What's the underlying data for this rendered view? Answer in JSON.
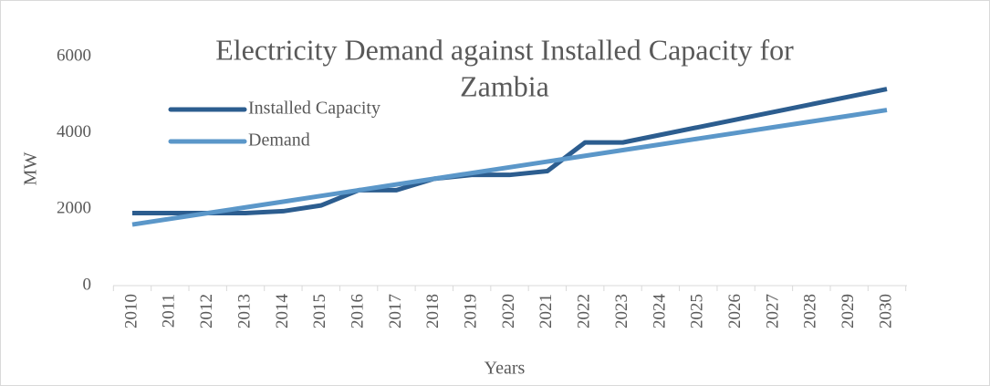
{
  "chart_data": {
    "type": "line",
    "title": [
      "Electricity Demand against Installed Capacity for",
      "Zambia"
    ],
    "x_label": "Years",
    "y_label": "MW",
    "categories": [
      "2010",
      "2011",
      "2012",
      "2013",
      "2014",
      "2015",
      "2016",
      "2017",
      "2018",
      "2019",
      "2020",
      "2021",
      "2022",
      "2023",
      "2024",
      "2025",
      "2026",
      "2027",
      "2028",
      "2029",
      "2030"
    ],
    "series": [
      {
        "name": "Installed Capacity",
        "color": "#2c5d8f",
        "values": [
          1900,
          1900,
          1900,
          1900,
          1950,
          2100,
          2500,
          2500,
          2800,
          2900,
          2900,
          3000,
          3750,
          3750,
          3950,
          4150,
          4350,
          4550,
          4750,
          4950,
          5150
        ]
      },
      {
        "name": "Demand",
        "color": "#5b97c9",
        "values": [
          1600,
          1750,
          1900,
          2050,
          2200,
          2350,
          2500,
          2650,
          2800,
          2950,
          3100,
          3250,
          3400,
          3550,
          3700,
          3850,
          4000,
          4150,
          4300,
          4450,
          4600
        ]
      }
    ],
    "ylim": [
      0,
      6000
    ],
    "yticks": [
      0,
      2000,
      4000,
      6000
    ],
    "grid": false
  }
}
